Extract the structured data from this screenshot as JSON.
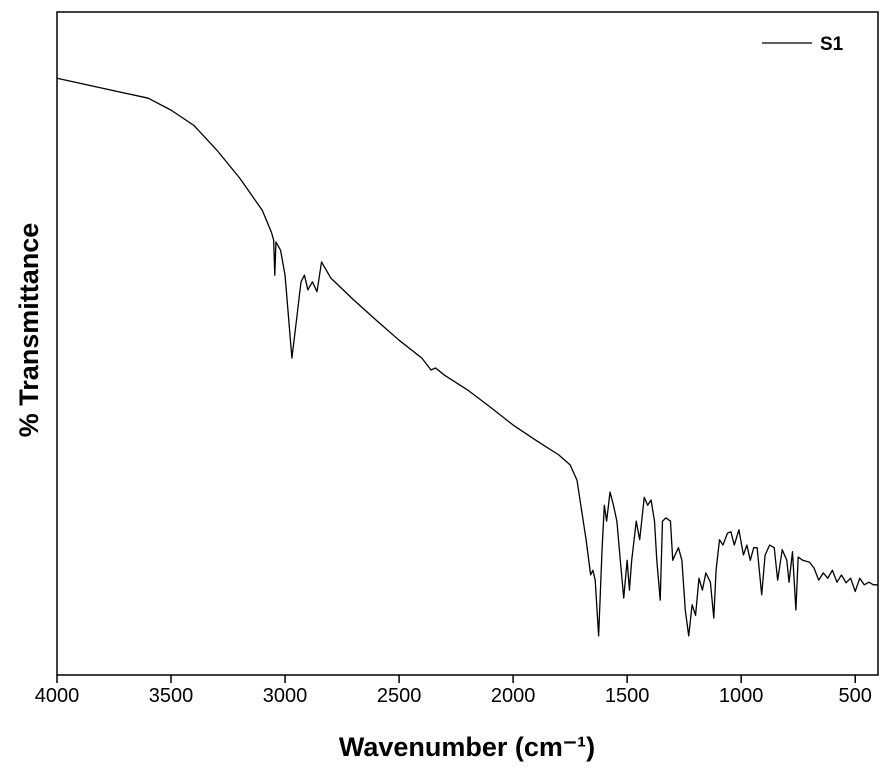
{
  "chart_data": {
    "type": "line",
    "x_label": "Wavenumber (cm⁻¹)",
    "y_label": "% Transmittance",
    "xlim": [
      4000,
      400
    ],
    "ylim": [
      0,
      100
    ],
    "xticks": [
      4000,
      3500,
      3000,
      2500,
      2000,
      1500,
      1000,
      500
    ],
    "legend": "upper right",
    "x": [
      4000,
      3800,
      3600,
      3500,
      3400,
      3300,
      3200,
      3100,
      3060,
      3050,
      3045,
      3040,
      3020,
      3000,
      2970,
      2950,
      2930,
      2915,
      2900,
      2880,
      2860,
      2840,
      2800,
      2700,
      2600,
      2500,
      2400,
      2360,
      2340,
      2300,
      2200,
      2100,
      2000,
      1900,
      1800,
      1750,
      1720,
      1700,
      1680,
      1660,
      1650,
      1640,
      1625,
      1610,
      1600,
      1590,
      1575,
      1560,
      1545,
      1530,
      1515,
      1500,
      1490,
      1480,
      1460,
      1445,
      1425,
      1410,
      1395,
      1380,
      1370,
      1355,
      1345,
      1330,
      1310,
      1300,
      1290,
      1275,
      1260,
      1245,
      1230,
      1215,
      1200,
      1185,
      1170,
      1155,
      1135,
      1120,
      1110,
      1095,
      1080,
      1060,
      1045,
      1030,
      1010,
      990,
      975,
      960,
      945,
      930,
      910,
      895,
      875,
      855,
      840,
      820,
      800,
      790,
      775,
      760,
      750,
      730,
      700,
      680,
      660,
      640,
      620,
      600,
      580,
      560,
      540,
      520,
      500,
      480,
      460,
      440,
      420,
      400
    ],
    "series": [
      {
        "name": "S1",
        "color": "#000000",
        "values": [
          90.0,
          88.5,
          87.0,
          85.2,
          82.9,
          79.2,
          75.0,
          70.1,
          66.8,
          65.6,
          60.3,
          65.3,
          64.1,
          60.3,
          47.8,
          53.5,
          59.3,
          60.3,
          58.1,
          59.3,
          57.8,
          62.3,
          59.9,
          56.6,
          53.5,
          50.5,
          47.8,
          46.0,
          46.3,
          45.2,
          43.0,
          40.4,
          37.7,
          35.4,
          33.2,
          31.7,
          29.4,
          24.9,
          20.4,
          15.1,
          15.8,
          14.3,
          5.9,
          18.9,
          25.6,
          23.2,
          27.6,
          25.6,
          23.2,
          17.3,
          11.6,
          17.3,
          12.8,
          17.3,
          23.2,
          20.4,
          26.8,
          25.6,
          26.4,
          23.2,
          17.3,
          11.3,
          23.2,
          23.7,
          23.2,
          17.3,
          18.1,
          19.2,
          17.3,
          9.8,
          5.9,
          10.6,
          9.0,
          14.6,
          12.8,
          15.4,
          14.0,
          8.6,
          15.8,
          20.4,
          19.6,
          21.4,
          21.6,
          19.6,
          21.9,
          18.1,
          19.6,
          17.3,
          19.2,
          19.2,
          12.1,
          18.1,
          19.6,
          19.2,
          14.3,
          18.9,
          17.3,
          14.0,
          18.6,
          9.8,
          17.8,
          17.3,
          17.0,
          16.1,
          14.3,
          15.4,
          14.6,
          15.8,
          14.0,
          15.1,
          13.9,
          14.6,
          12.6,
          14.6,
          13.6,
          14.0,
          13.6,
          13.6
        ]
      }
    ]
  }
}
